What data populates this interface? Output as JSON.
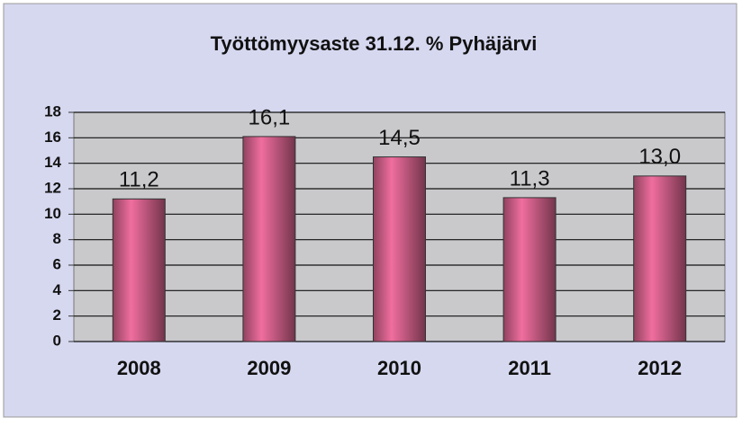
{
  "chart_data": {
    "type": "bar",
    "title": "Työttömyysaste 31.12. % Pyhäjärvi",
    "categories": [
      "2008",
      "2009",
      "2010",
      "2011",
      "2012"
    ],
    "values": [
      11.2,
      16.1,
      14.5,
      11.3,
      13.0
    ],
    "value_labels": [
      "11,2",
      "16,1",
      "14,5",
      "11,3",
      "13,0"
    ],
    "color": "#c0587e",
    "ylim": [
      0,
      18
    ],
    "yticks": [
      0,
      2,
      4,
      6,
      8,
      10,
      12,
      14,
      16,
      18
    ],
    "grid": true
  }
}
